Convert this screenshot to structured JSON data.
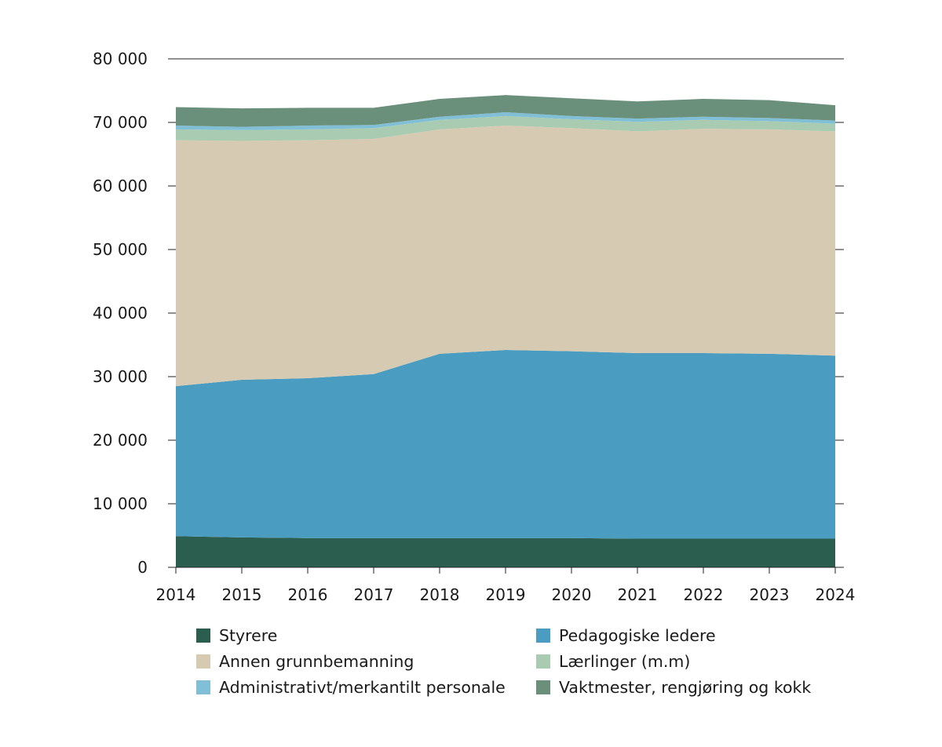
{
  "chart_data": {
    "type": "area",
    "stacked": true,
    "title": "",
    "xlabel": "",
    "ylabel": "",
    "x": [
      2014,
      2015,
      2016,
      2017,
      2018,
      2019,
      2020,
      2021,
      2022,
      2023,
      2024
    ],
    "x_tick_labels": [
      "2014",
      "2015",
      "2016",
      "2017",
      "2018",
      "2019",
      "2020",
      "2021",
      "2022",
      "2023",
      "2024"
    ],
    "ylim": [
      0,
      80000
    ],
    "y_ticks": [
      0,
      10000,
      20000,
      30000,
      40000,
      50000,
      60000,
      70000,
      80000
    ],
    "y_tick_labels": [
      "0",
      "10 000",
      "20 000",
      "30 000",
      "40 000",
      "50 000",
      "60 000",
      "70 000",
      "80 000"
    ],
    "legend_position": "bottom",
    "series": [
      {
        "name": "Styrere",
        "color": "#2c5e4f",
        "values": [
          4900,
          4700,
          4600,
          4600,
          4600,
          4600,
          4600,
          4500,
          4500,
          4500,
          4500
        ]
      },
      {
        "name": "Pedagogiske ledere",
        "color": "#4a9dc1",
        "values": [
          23600,
          24800,
          25150,
          25800,
          29000,
          29600,
          29400,
          29200,
          29200,
          29100,
          28800
        ]
      },
      {
        "name": "Annen grunnbemanning",
        "color": "#d6cab2",
        "values": [
          38700,
          37600,
          37450,
          37000,
          35300,
          35300,
          35100,
          34900,
          35300,
          35300,
          35300
        ]
      },
      {
        "name": "Lærlinger (m.m)",
        "color": "#a8cbb1",
        "values": [
          1700,
          1700,
          1700,
          1700,
          1500,
          1500,
          1400,
          1500,
          1400,
          1300,
          1200
        ]
      },
      {
        "name": "Administrativt/merkantilt personale",
        "color": "#80bfd6",
        "values": [
          600,
          500,
          600,
          500,
          500,
          600,
          500,
          500,
          500,
          500,
          500
        ]
      },
      {
        "name": "Vaktmester, rengjøring og kokk",
        "color": "#6a8f7a",
        "values": [
          2900,
          2900,
          2800,
          2700,
          2800,
          2700,
          2800,
          2700,
          2800,
          2800,
          2400
        ]
      }
    ],
    "legend_order": [
      0,
      1,
      2,
      3,
      4,
      5
    ]
  }
}
